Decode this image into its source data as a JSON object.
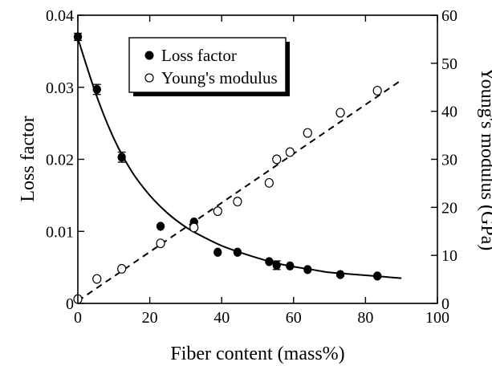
{
  "chart_data": {
    "type": "scatter",
    "xlabel": "Fiber content (mass%)",
    "ylabel_left": "Loss factor",
    "ylabel_right": "Young's modulus (GPa)",
    "xlim": [
      0,
      100
    ],
    "ylim_left": [
      0,
      0.04
    ],
    "ylim_right": [
      0,
      60
    ],
    "x_ticks": [
      0,
      20,
      40,
      60,
      80,
      100
    ],
    "y_left_ticks": [
      0,
      0.01,
      0.02,
      0.03,
      0.04
    ],
    "y_left_tick_labels": [
      "0",
      "0.01",
      "0.02",
      "0.03",
      "0.04"
    ],
    "y_right_ticks": [
      0,
      10,
      20,
      30,
      40,
      50,
      60
    ],
    "grid": false,
    "legend_position": "top-left",
    "series": [
      {
        "name": "Loss factor",
        "axis": "left",
        "marker": "filled-circle",
        "x": [
          0,
          5.3,
          12.2,
          23,
          32.3,
          38.9,
          44.4,
          53.2,
          55.3,
          59,
          63.9,
          73,
          83.3
        ],
        "y": [
          0.037,
          0.0297,
          0.0203,
          0.0107,
          0.0113,
          0.0071,
          0.0071,
          0.0058,
          0.0053,
          0.0052,
          0.0047,
          0.004,
          0.0038
        ],
        "yerr": [
          0.0005,
          0.0007,
          0.0007,
          0,
          0,
          0,
          0,
          0,
          0.0006,
          0,
          0,
          0,
          0.0002
        ]
      },
      {
        "name": "Young's modulus",
        "axis": "right",
        "marker": "open-circle",
        "x": [
          0,
          5.3,
          12.2,
          23,
          32.3,
          38.9,
          44.4,
          53.2,
          55.3,
          59,
          63.9,
          73,
          83.3
        ],
        "y": [
          0.9,
          5.1,
          7.2,
          12.5,
          15.8,
          19.2,
          21.2,
          25.1,
          30,
          31.5,
          35.5,
          39.7,
          44.3
        ]
      }
    ],
    "fits": [
      {
        "series": "Loss factor",
        "axis": "left",
        "style": "solid",
        "x": [
          0,
          5,
          10,
          15,
          20,
          25,
          30,
          35,
          40,
          45,
          50,
          55,
          60,
          65,
          70,
          75,
          80,
          85,
          90
        ],
        "y": [
          0.0368,
          0.0291,
          0.0229,
          0.0183,
          0.015,
          0.0125,
          0.0106,
          0.0092,
          0.008,
          0.0071,
          0.0063,
          0.0056,
          0.0051,
          0.0047,
          0.0043,
          0.0041,
          0.0039,
          0.0037,
          0.0035
        ]
      },
      {
        "series": "Young's modulus",
        "axis": "right",
        "style": "dashed",
        "x": [
          0,
          90
        ],
        "y": [
          0.5,
          46.5
        ]
      }
    ]
  }
}
